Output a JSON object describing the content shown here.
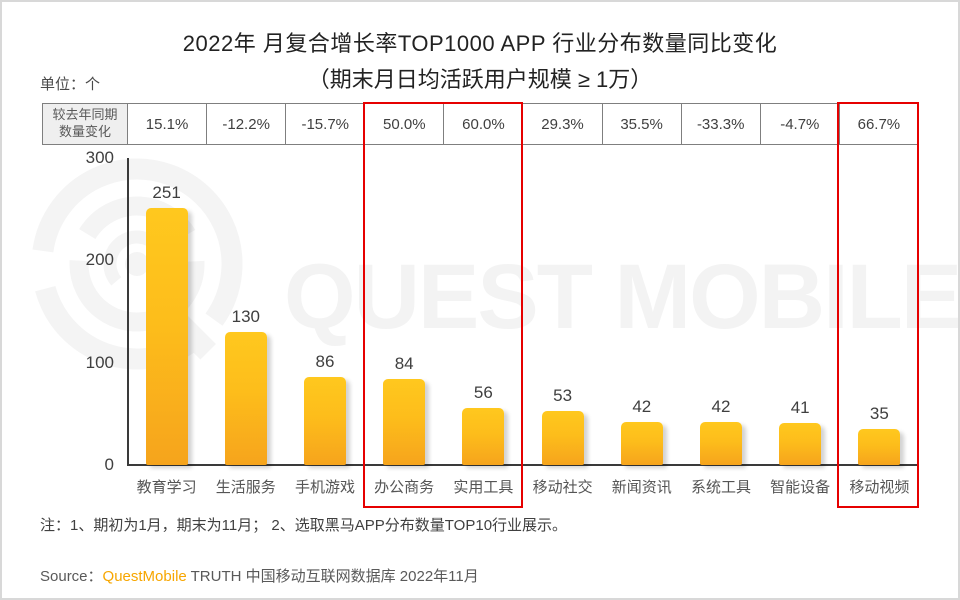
{
  "page": {
    "title": "2022年 月复合增长率TOP1000 APP 行业分布数量同比变化",
    "subtitle": "（期末月日均活跃用户规模 ≥ 1万）",
    "unit_label": "单位：个",
    "note": "注：1、期初为1月，期末为11月； 2、选取黑马APP分布数量TOP10行业展示。",
    "source": {
      "prefix": "Source：",
      "brand": "QuestMobile",
      "suffix": " TRUTH 中国移动互联网数据库 2022年11月"
    },
    "watermark": "QUEST MOBILE"
  },
  "table": {
    "header_line1": "较去年同期",
    "header_line2": "数量变化"
  },
  "chart_data": {
    "type": "bar",
    "title": "2022年 月复合增长率TOP1000 APP 行业分布数量同比变化",
    "subtitle": "（期末月日均活跃用户规模 ≥ 1万）",
    "unit": "个",
    "categories": [
      "教育学习",
      "生活服务",
      "手机游戏",
      "办公商务",
      "实用工具",
      "移动社交",
      "新闻资讯",
      "系统工具",
      "智能设备",
      "移动视频"
    ],
    "values": [
      251,
      130,
      86,
      84,
      56,
      53,
      42,
      42,
      41,
      35
    ],
    "yoy_change": [
      "15.1%",
      "-12.2%",
      "-15.7%",
      "50.0%",
      "60.0%",
      "29.3%",
      "35.5%",
      "-33.3%",
      "-4.7%",
      "66.7%"
    ],
    "y_ticks": [
      "300",
      "200",
      "100",
      "0"
    ],
    "ylim": [
      0,
      300
    ],
    "grid": false,
    "legend": "none",
    "highlighted_categories": [
      "办公商务",
      "实用工具",
      "移动视频"
    ],
    "colors": {
      "bar_top": "#FFC81E",
      "bar_bottom": "#F6A41C",
      "highlight_border": "#E60000",
      "source_brand": "#F7A600",
      "watermark": "#F3F3F3"
    }
  }
}
